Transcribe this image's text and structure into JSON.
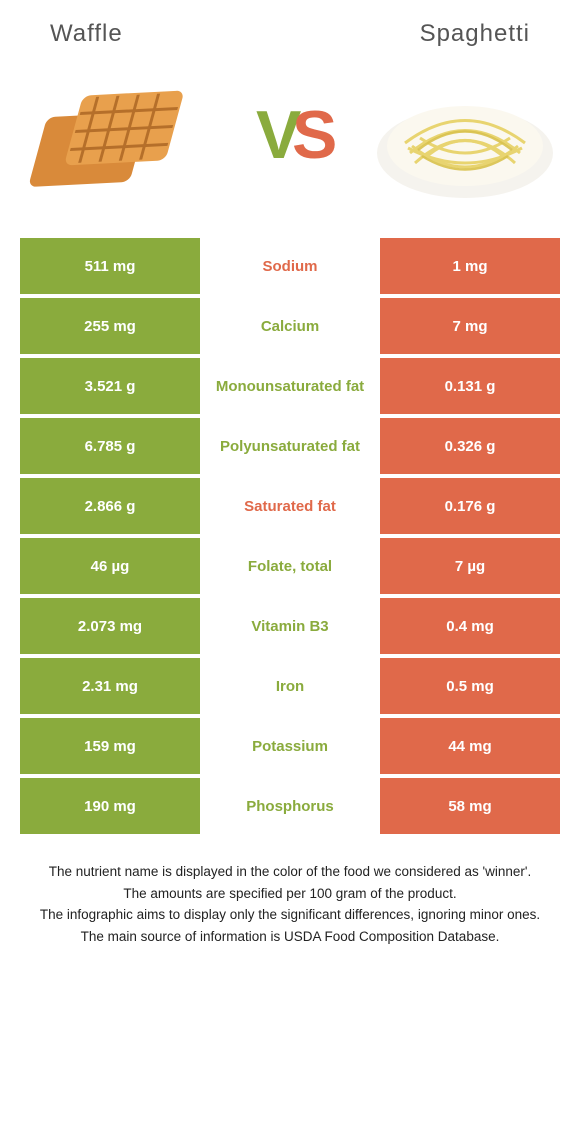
{
  "header": {
    "left_title": "Waffle",
    "right_title": "Spaghetti"
  },
  "vs": {
    "v_color": "#8aab3d",
    "s_color": "#e0694a"
  },
  "colors": {
    "left_cell_bg": "#8aab3d",
    "right_cell_bg": "#e0694a",
    "mid_left_text": "#8aab3d",
    "mid_right_text": "#e0694a",
    "cell_text": "#ffffff"
  },
  "rows": [
    {
      "left": "511 mg",
      "label": "Sodium",
      "right": "1 mg",
      "winner": "right"
    },
    {
      "left": "255 mg",
      "label": "Calcium",
      "right": "7 mg",
      "winner": "left"
    },
    {
      "left": "3.521 g",
      "label": "Monounsaturated fat",
      "right": "0.131 g",
      "winner": "left"
    },
    {
      "left": "6.785 g",
      "label": "Polyunsaturated fat",
      "right": "0.326 g",
      "winner": "left"
    },
    {
      "left": "2.866 g",
      "label": "Saturated fat",
      "right": "0.176 g",
      "winner": "right"
    },
    {
      "left": "46 µg",
      "label": "Folate, total",
      "right": "7 µg",
      "winner": "left"
    },
    {
      "left": "2.073 mg",
      "label": "Vitamin B3",
      "right": "0.4 mg",
      "winner": "left"
    },
    {
      "left": "2.31 mg",
      "label": "Iron",
      "right": "0.5 mg",
      "winner": "left"
    },
    {
      "left": "159 mg",
      "label": "Potassium",
      "right": "44 mg",
      "winner": "left"
    },
    {
      "left": "190 mg",
      "label": "Phosphorus",
      "right": "58 mg",
      "winner": "left"
    }
  ],
  "footer": {
    "l1": "The nutrient name is displayed in the color of the food we considered as 'winner'.",
    "l2": "The amounts are specified per 100 gram of the product.",
    "l3": "The infographic aims to display only the significant differences, ignoring minor ones.",
    "l4": "The main source of information is USDA Food Composition Database."
  }
}
